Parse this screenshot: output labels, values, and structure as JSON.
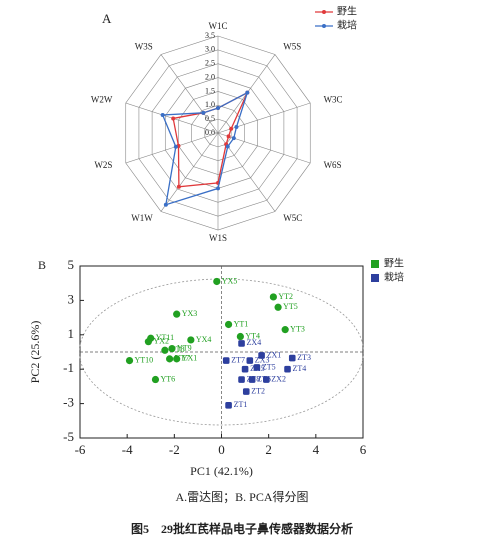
{
  "chart_data": [
    {
      "type": "radar",
      "title": "A",
      "categories": [
        "W1C",
        "W5S",
        "W3C",
        "W6S",
        "W5C",
        "W1S",
        "W1W",
        "W2S",
        "W2W",
        "W3S"
      ],
      "series": [
        {
          "name": "野生",
          "color": "#e0393b",
          "values": [
            0.9,
            1.8,
            0.5,
            0.4,
            0.5,
            1.8,
            2.4,
            1.5,
            1.7,
            0.9
          ]
        },
        {
          "name": "栽培",
          "color": "#3a6fc6",
          "values": [
            0.9,
            1.8,
            0.7,
            0.6,
            0.6,
            2.0,
            3.2,
            1.6,
            2.1,
            0.9
          ]
        }
      ],
      "rlim": [
        0,
        3.5
      ],
      "rticks": [
        {
          "value": 0,
          "label": "0.0"
        },
        0.5,
        {
          "value": 1,
          "label": "1.0"
        },
        1.5,
        {
          "value": 2,
          "label": "2.0"
        },
        2.5,
        {
          "value": 3,
          "label": "3.0"
        },
        3.5
      ],
      "legend": "upper right"
    },
    {
      "type": "scatter",
      "title": "B",
      "x_label": "PC1 (42.1%)",
      "y_label": "PC2 (25.6%)",
      "series": [
        {
          "name": "野生",
          "color": "#21a021",
          "names": [
            "YX5",
            "YT2",
            "YT5",
            "YX3",
            "YT1",
            "YT3",
            "YT4",
            "YX4",
            "YT11",
            "YX2",
            "YT9",
            "YT8",
            "YT10",
            "YT7",
            "YX1",
            "YT6"
          ],
          "x": [
            -0.2,
            2.2,
            2.4,
            -1.9,
            0.3,
            2.7,
            0.8,
            -1.3,
            -3.0,
            -3.1,
            -2.1,
            -2.4,
            -3.9,
            -2.2,
            -1.9,
            -2.8
          ],
          "values": [
            4.1,
            3.2,
            2.6,
            2.2,
            1.6,
            1.3,
            0.9,
            0.7,
            0.8,
            0.6,
            0.2,
            0.1,
            -0.5,
            -0.4,
            -0.4,
            -1.6
          ]
        },
        {
          "name": "栽培",
          "color": "#2d3f9e",
          "names": [
            "ZX4",
            "ZT7",
            "ZX3",
            "ZX1",
            "ZT3",
            "ZT5",
            "ZX5",
            "ZT4",
            "ZT8",
            "ZT6",
            "ZX2",
            "ZT2",
            "ZT1"
          ],
          "x": [
            0.85,
            0.2,
            1.2,
            1.7,
            3.0,
            1.5,
            1.0,
            2.8,
            0.85,
            1.3,
            1.9,
            1.05,
            0.3
          ],
          "values": [
            0.5,
            -0.5,
            -0.5,
            -0.2,
            -0.35,
            -0.9,
            -1.0,
            -1.0,
            -1.6,
            -1.6,
            -1.6,
            -2.3,
            -3.1
          ]
        }
      ],
      "xlim": [
        -6,
        6
      ],
      "xticks": [
        -6,
        -4,
        -2,
        0,
        2,
        4,
        6
      ],
      "ylim": [
        -5,
        5
      ],
      "yticks": [
        -5,
        -3,
        -1,
        1,
        3,
        5
      ],
      "legend": "right"
    }
  ],
  "caption": "A.雷达图；B. PCA得分图",
  "figure_title": "图5　29批红芪样品电子鼻传感器数据分析"
}
